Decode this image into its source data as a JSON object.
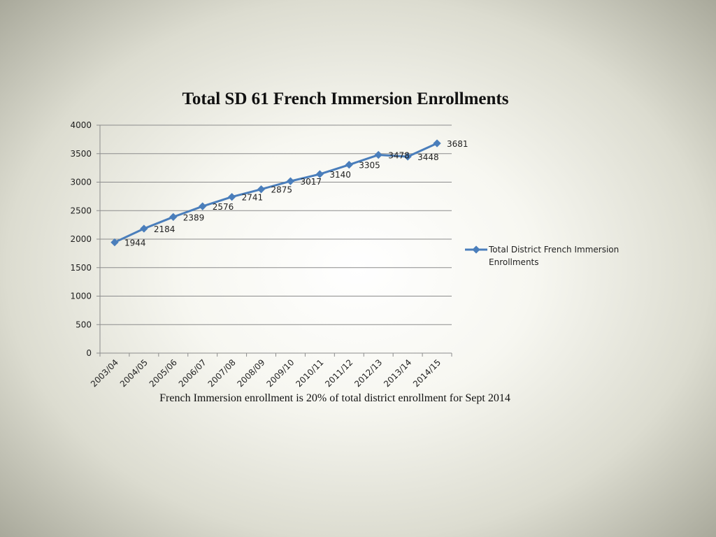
{
  "colors": {
    "series": "#4a7ebb",
    "grid": "#8c8c8c"
  },
  "chart_data": {
    "type": "line",
    "title": "Total SD 61 French Immersion Enrollments",
    "categories": [
      "2003/04",
      "2004/05",
      "2005/06",
      "2006/07",
      "2007/08",
      "2008/09",
      "2009/10",
      "2010/11",
      "2011/12",
      "2012/13",
      "2013/14",
      "2014/15"
    ],
    "series": [
      {
        "name": "Total District French Immersion Enrollments",
        "values": [
          1944,
          2184,
          2389,
          2576,
          2741,
          2875,
          3017,
          3140,
          3305,
          3478,
          3448,
          3681
        ],
        "marker": "diamond"
      }
    ],
    "ylim": [
      0,
      4000
    ],
    "yticks": [
      0,
      500,
      1000,
      1500,
      2000,
      2500,
      3000,
      3500,
      4000
    ],
    "grid": true,
    "data_labels": true,
    "legend": "right"
  },
  "caption": "French Immersion enrollment is 20% of total district enrollment for Sept 2014"
}
